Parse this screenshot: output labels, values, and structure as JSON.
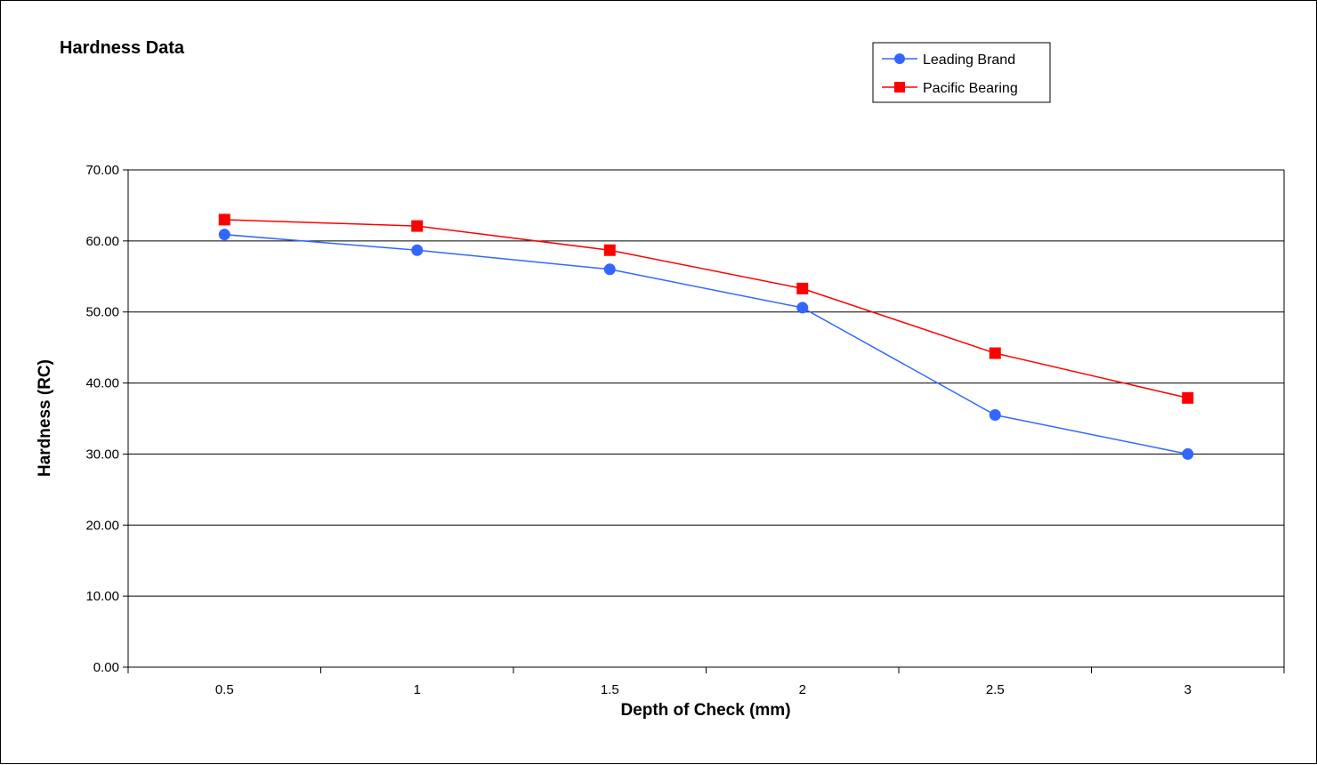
{
  "chart_data": {
    "type": "line",
    "title": "Hardness Data",
    "xlabel": "Depth of Check (mm)",
    "ylabel": "Hardness (RC)",
    "categories": [
      "0.5",
      "1",
      "1.5",
      "2",
      "2.5",
      "3"
    ],
    "ylim": [
      0,
      70
    ],
    "yticks": [
      "0.00",
      "10.00",
      "20.00",
      "30.00",
      "40.00",
      "50.00",
      "60.00",
      "70.00"
    ],
    "grid": true,
    "legend_position": "top-right",
    "series": [
      {
        "name": "Leading Brand",
        "color": "#3366ff",
        "marker": "circle",
        "values": [
          60.9,
          58.7,
          56.0,
          50.6,
          35.5,
          30.0
        ]
      },
      {
        "name": "Pacific Bearing",
        "color": "#ff0000",
        "marker": "square",
        "values": [
          63.0,
          62.1,
          58.7,
          53.3,
          44.2,
          37.9
        ]
      }
    ]
  }
}
